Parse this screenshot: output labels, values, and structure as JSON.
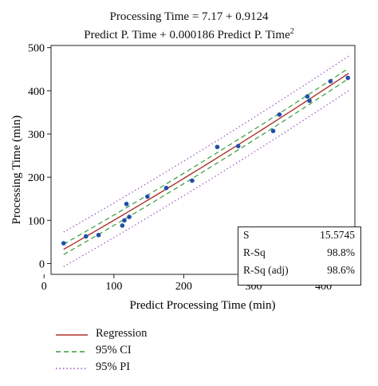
{
  "title": {
    "line1": "Processing Time = 7.17 + 0.9124",
    "line2_main": "Predict P. Time + 0.000186 Predict P. Time",
    "line2_sup": "2"
  },
  "colors": {
    "regression": "#b0302a",
    "ci": "#3a9a3a",
    "pi": "#9a4fc0",
    "points": "#1f4fa8",
    "axis": "#222222"
  },
  "stats": [
    {
      "label": "S",
      "value": "15.5745"
    },
    {
      "label": "R-Sq",
      "value": "98.8%"
    },
    {
      "label": "R-Sq (adj)",
      "value": "98.6%"
    }
  ],
  "legend": [
    {
      "label": "Regression",
      "style": "solid",
      "series": "regression"
    },
    {
      "label": "95% CI",
      "style": "dashed",
      "series": "ci"
    },
    {
      "label": "95% PI",
      "style": "dotted",
      "series": "pi"
    }
  ],
  "chart_data": {
    "type": "scatter",
    "title": "Processing Time = 7.17 + 0.9124 Predict P. Time + 0.000186 Predict P. Time^2",
    "xlabel": "Predict Processing Time (min)",
    "ylabel": "Processing Time (min)",
    "xlim": [
      10,
      445
    ],
    "ylim": [
      -25,
      505
    ],
    "xticks": [
      0,
      100,
      200,
      300,
      400
    ],
    "yticks": [
      0,
      100,
      200,
      300,
      400,
      500
    ],
    "grid": false,
    "legend_position": "bottom-left",
    "model": {
      "intercept": 7.17,
      "b1": 0.9124,
      "b2": 0.000186
    },
    "fit_range": [
      28,
      436
    ],
    "ci_halfwidth": 12,
    "pi_halfwidth": 40,
    "points": [
      {
        "x": 28,
        "y": 47
      },
      {
        "x": 60,
        "y": 63
      },
      {
        "x": 78,
        "y": 66
      },
      {
        "x": 112,
        "y": 88
      },
      {
        "x": 115,
        "y": 100
      },
      {
        "x": 118,
        "y": 138
      },
      {
        "x": 122,
        "y": 108
      },
      {
        "x": 148,
        "y": 155
      },
      {
        "x": 175,
        "y": 175
      },
      {
        "x": 212,
        "y": 192
      },
      {
        "x": 248,
        "y": 270
      },
      {
        "x": 278,
        "y": 272
      },
      {
        "x": 328,
        "y": 307
      },
      {
        "x": 337,
        "y": 345
      },
      {
        "x": 377,
        "y": 387
      },
      {
        "x": 380,
        "y": 377
      },
      {
        "x": 410,
        "y": 422
      },
      {
        "x": 435,
        "y": 430
      }
    ]
  }
}
